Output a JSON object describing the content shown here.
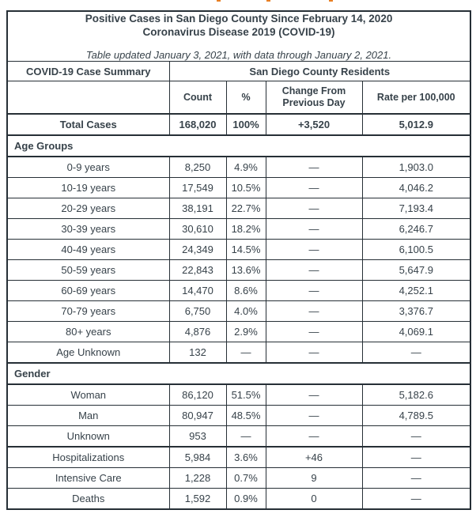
{
  "page": {
    "clipped_top_text_marks": 3,
    "clipped_mark_color": "#e87f23"
  },
  "colors": {
    "text": "#37424a",
    "border": "#262f36",
    "background": "#ffffff"
  },
  "table": {
    "title_line1": "Positive Cases in San Diego County Since February 14, 2020",
    "title_line2": "Coronavirus Disease 2019 (COVID-19)",
    "subtitle": "Table updated January 3, 2021, with data through January 2, 2021.",
    "header_left": "COVID-19 Case Summary",
    "header_right": "San Diego County Residents",
    "columns": {
      "label": "",
      "count": "Count",
      "percent": "%",
      "change": "Change From Previous Day",
      "rate": "Rate per 100,000"
    },
    "rows": [
      {
        "style": "total",
        "label": "Total Cases",
        "count": "168,020",
        "pct": "100%",
        "change": "+3,520",
        "rate": "5,012.9"
      },
      {
        "style": "section",
        "label": "Age Groups"
      },
      {
        "style": "sub",
        "label": "0-9 years",
        "count": "8,250",
        "pct": "4.9%",
        "change": "—",
        "rate": "1,903.0"
      },
      {
        "style": "sub",
        "label": "10-19 years",
        "count": "17,549",
        "pct": "10.5%",
        "change": "—",
        "rate": "4,046.2"
      },
      {
        "style": "sub",
        "label": "20-29 years",
        "count": "38,191",
        "pct": "22.7%",
        "change": "—",
        "rate": "7,193.4"
      },
      {
        "style": "sub",
        "label": "30-39 years",
        "count": "30,610",
        "pct": "18.2%",
        "change": "—",
        "rate": "6,246.7"
      },
      {
        "style": "sub",
        "label": "40-49 years",
        "count": "24,349",
        "pct": "14.5%",
        "change": "—",
        "rate": "6,100.5"
      },
      {
        "style": "sub",
        "label": "50-59 years",
        "count": "22,843",
        "pct": "13.6%",
        "change": "—",
        "rate": "5,647.9"
      },
      {
        "style": "sub",
        "label": "60-69 years",
        "count": "14,470",
        "pct": "8.6%",
        "change": "—",
        "rate": "4,252.1"
      },
      {
        "style": "sub",
        "label": "70-79 years",
        "count": "6,750",
        "pct": "4.0%",
        "change": "—",
        "rate": "3,376.7"
      },
      {
        "style": "sub",
        "label": "80+ years",
        "count": "4,876",
        "pct": "2.9%",
        "change": "—",
        "rate": "4,069.1"
      },
      {
        "style": "sub",
        "label": "Age Unknown",
        "count": "132",
        "pct": "—",
        "change": "—",
        "rate": "—"
      },
      {
        "style": "section",
        "label": "Gender"
      },
      {
        "style": "sub",
        "label": "Woman",
        "count": "86,120",
        "pct": "51.5%",
        "change": "—",
        "rate": "5,182.6"
      },
      {
        "style": "sub",
        "label": "Man",
        "count": "80,947",
        "pct": "48.5%",
        "change": "—",
        "rate": "4,789.5"
      },
      {
        "style": "sub",
        "label": "Unknown",
        "count": "953",
        "pct": "—",
        "change": "—",
        "rate": "—"
      },
      {
        "style": "main",
        "thick_top": true,
        "label": "Hospitalizations",
        "count": "5,984",
        "pct": "3.6%",
        "change": "+46",
        "rate": "—"
      },
      {
        "style": "main",
        "label": "Intensive Care",
        "count": "1,228",
        "pct": "0.7%",
        "change": "9",
        "rate": "—"
      },
      {
        "style": "main",
        "label": "Deaths",
        "count": "1,592",
        "pct": "0.9%",
        "change": "0",
        "rate": "—"
      }
    ]
  }
}
